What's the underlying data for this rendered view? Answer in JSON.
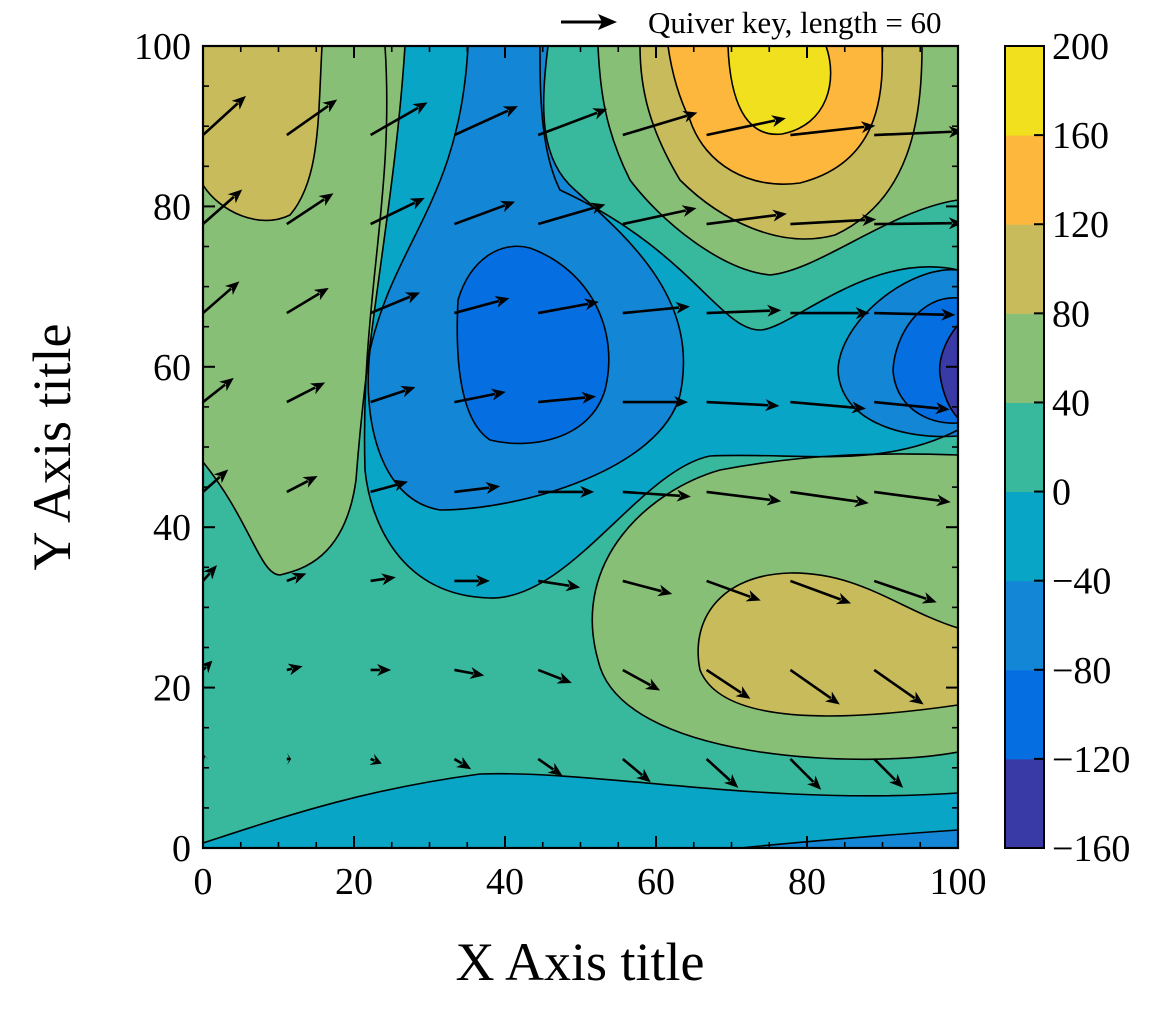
{
  "chart_data": {
    "type": "contour",
    "title": "",
    "xlabel": "X Axis title",
    "ylabel": "Y Axis title",
    "xlim": [
      0,
      100
    ],
    "ylim": [
      0,
      100
    ],
    "x_ticks": [
      0,
      20,
      40,
      60,
      80,
      100
    ],
    "y_ticks": [
      0,
      20,
      40,
      60,
      80,
      100
    ],
    "x_tick_labels": [
      "0",
      "20",
      "40",
      "60",
      "80",
      "100"
    ],
    "y_tick_labels": [
      "0",
      "20",
      "40",
      "60",
      "80",
      "100"
    ],
    "grid": false,
    "colorbar": {
      "levels": [
        -160,
        -120,
        -80,
        -40,
        0,
        40,
        80,
        120,
        160,
        200
      ],
      "labels": [
        "−160",
        "−120",
        "−80",
        "−40",
        "0",
        "40",
        "80",
        "120",
        "160",
        "200"
      ],
      "colors": [
        "#3a3aa6",
        "#056ee0",
        "#1386d6",
        "#09a5c7",
        "#38b89c",
        "#88bf76",
        "#c7bb5c",
        "#fdb73c",
        "#f0e01e"
      ]
    },
    "features": [
      {
        "name": "maximum",
        "x": 76,
        "y": 94,
        "value": 200
      },
      {
        "name": "maximum",
        "x": 4,
        "y": 90,
        "value": 120
      },
      {
        "name": "minimum",
        "x": 43,
        "y": 61,
        "value": -120
      },
      {
        "name": "minimum",
        "x": 100,
        "y": 60,
        "value": -160
      },
      {
        "name": "maximum",
        "x": 80,
        "y": 24,
        "value": 120
      }
    ],
    "quiver": {
      "key": {
        "label": "Quiver key, length = 60",
        "length": 60
      },
      "grid_x": [
        0,
        11.1,
        22.2,
        33.3,
        44.4,
        55.6,
        66.7,
        77.8,
        88.9,
        100
      ],
      "grid_y": [
        0,
        11.1,
        22.2,
        33.3,
        44.4,
        55.6,
        66.7,
        77.8,
        88.9,
        100
      ],
      "vectors": [
        {
          "x": 0,
          "y": 11.1,
          "u": 1,
          "v": 4
        },
        {
          "x": 11.1,
          "y": 11.1,
          "u": 3,
          "v": 0
        },
        {
          "x": 22.2,
          "y": 11.1,
          "u": 12,
          "v": -5
        },
        {
          "x": 33.3,
          "y": 11.1,
          "u": 18,
          "v": -11
        },
        {
          "x": 44.4,
          "y": 11.1,
          "u": 26,
          "v": -18
        },
        {
          "x": 55.6,
          "y": 11.1,
          "u": 30,
          "v": -25
        },
        {
          "x": 66.7,
          "y": 11.1,
          "u": 34,
          "v": -31
        },
        {
          "x": 77.8,
          "y": 11.1,
          "u": 33,
          "v": -33
        },
        {
          "x": 88.9,
          "y": 11.1,
          "u": 31,
          "v": -31
        },
        {
          "x": 0,
          "y": 22.2,
          "u": 10,
          "v": 10
        },
        {
          "x": 11.1,
          "y": 22.2,
          "u": 17,
          "v": 4
        },
        {
          "x": 22.2,
          "y": 22.2,
          "u": 22,
          "v": 0
        },
        {
          "x": 33.3,
          "y": 22.2,
          "u": 32,
          "v": -6
        },
        {
          "x": 44.4,
          "y": 22.2,
          "u": 36,
          "v": -14
        },
        {
          "x": 55.6,
          "y": 22.2,
          "u": 40,
          "v": -22
        },
        {
          "x": 66.7,
          "y": 22.2,
          "u": 47,
          "v": -31
        },
        {
          "x": 77.8,
          "y": 22.2,
          "u": 53,
          "v": -37
        },
        {
          "x": 88.9,
          "y": 22.2,
          "u": 53,
          "v": -37
        },
        {
          "x": 0,
          "y": 33.3,
          "u": 15,
          "v": 17
        },
        {
          "x": 11.1,
          "y": 33.3,
          "u": 21,
          "v": 8
        },
        {
          "x": 22.2,
          "y": 33.3,
          "u": 27,
          "v": 4
        },
        {
          "x": 33.3,
          "y": 33.3,
          "u": 38,
          "v": 0
        },
        {
          "x": 44.4,
          "y": 33.3,
          "u": 45,
          "v": -7
        },
        {
          "x": 55.6,
          "y": 33.3,
          "u": 53,
          "v": -14
        },
        {
          "x": 66.7,
          "y": 33.3,
          "u": 58,
          "v": -21
        },
        {
          "x": 77.8,
          "y": 33.3,
          "u": 65,
          "v": -24
        },
        {
          "x": 88.9,
          "y": 33.3,
          "u": 67,
          "v": -23
        },
        {
          "x": 0,
          "y": 44.4,
          "u": 27,
          "v": 24
        },
        {
          "x": 11.1,
          "y": 44.4,
          "u": 33,
          "v": 17
        },
        {
          "x": 22.2,
          "y": 44.4,
          "u": 40,
          "v": 11
        },
        {
          "x": 33.3,
          "y": 44.4,
          "u": 49,
          "v": 6
        },
        {
          "x": 44.4,
          "y": 44.4,
          "u": 60,
          "v": 0
        },
        {
          "x": 55.6,
          "y": 44.4,
          "u": 73,
          "v": -5
        },
        {
          "x": 66.7,
          "y": 44.4,
          "u": 80,
          "v": -10
        },
        {
          "x": 77.8,
          "y": 44.4,
          "u": 84,
          "v": -12
        },
        {
          "x": 88.9,
          "y": 44.4,
          "u": 82,
          "v": -11
        },
        {
          "x": 0,
          "y": 55.6,
          "u": 33,
          "v": 26
        },
        {
          "x": 11.1,
          "y": 55.6,
          "u": 41,
          "v": 21
        },
        {
          "x": 22.2,
          "y": 55.6,
          "u": 48,
          "v": 16
        },
        {
          "x": 33.3,
          "y": 55.6,
          "u": 55,
          "v": 11
        },
        {
          "x": 44.4,
          "y": 55.6,
          "u": 62,
          "v": 6
        },
        {
          "x": 55.6,
          "y": 55.6,
          "u": 70,
          "v": 0
        },
        {
          "x": 66.7,
          "y": 55.6,
          "u": 78,
          "v": -4
        },
        {
          "x": 77.8,
          "y": 55.6,
          "u": 81,
          "v": -7
        },
        {
          "x": 88.9,
          "y": 55.6,
          "u": 81,
          "v": -8
        },
        {
          "x": 0,
          "y": 66.7,
          "u": 39,
          "v": 34
        },
        {
          "x": 11.1,
          "y": 66.7,
          "u": 45,
          "v": 27
        },
        {
          "x": 22.2,
          "y": 66.7,
          "u": 53,
          "v": 22
        },
        {
          "x": 33.3,
          "y": 66.7,
          "u": 59,
          "v": 16
        },
        {
          "x": 44.4,
          "y": 66.7,
          "u": 65,
          "v": 12
        },
        {
          "x": 55.6,
          "y": 66.7,
          "u": 72,
          "v": 7
        },
        {
          "x": 66.7,
          "y": 66.7,
          "u": 80,
          "v": 3
        },
        {
          "x": 77.8,
          "y": 66.7,
          "u": 85,
          "v": 0
        },
        {
          "x": 88.9,
          "y": 66.7,
          "u": 87,
          "v": -2
        },
        {
          "x": 0,
          "y": 77.8,
          "u": 42,
          "v": 37
        },
        {
          "x": 11.1,
          "y": 77.8,
          "u": 50,
          "v": 33
        },
        {
          "x": 22.2,
          "y": 77.8,
          "u": 58,
          "v": 28
        },
        {
          "x": 33.3,
          "y": 77.8,
          "u": 65,
          "v": 24
        },
        {
          "x": 44.4,
          "y": 77.8,
          "u": 72,
          "v": 21
        },
        {
          "x": 55.6,
          "y": 77.8,
          "u": 79,
          "v": 17
        },
        {
          "x": 66.7,
          "y": 77.8,
          "u": 86,
          "v": 11
        },
        {
          "x": 77.8,
          "y": 77.8,
          "u": 92,
          "v": 5
        },
        {
          "x": 88.9,
          "y": 77.8,
          "u": 95,
          "v": 1
        },
        {
          "x": 0,
          "y": 88.9,
          "u": 46,
          "v": 42
        },
        {
          "x": 11.1,
          "y": 88.9,
          "u": 54,
          "v": 38
        },
        {
          "x": 22.2,
          "y": 88.9,
          "u": 61,
          "v": 35
        },
        {
          "x": 33.3,
          "y": 88.9,
          "u": 68,
          "v": 31
        },
        {
          "x": 44.4,
          "y": 88.9,
          "u": 74,
          "v": 28
        },
        {
          "x": 55.6,
          "y": 88.9,
          "u": 80,
          "v": 24
        },
        {
          "x": 66.7,
          "y": 88.9,
          "u": 85,
          "v": 18
        },
        {
          "x": 77.8,
          "y": 88.9,
          "u": 91,
          "v": 10
        },
        {
          "x": 88.9,
          "y": 88.9,
          "u": 95,
          "v": 4
        }
      ]
    }
  }
}
